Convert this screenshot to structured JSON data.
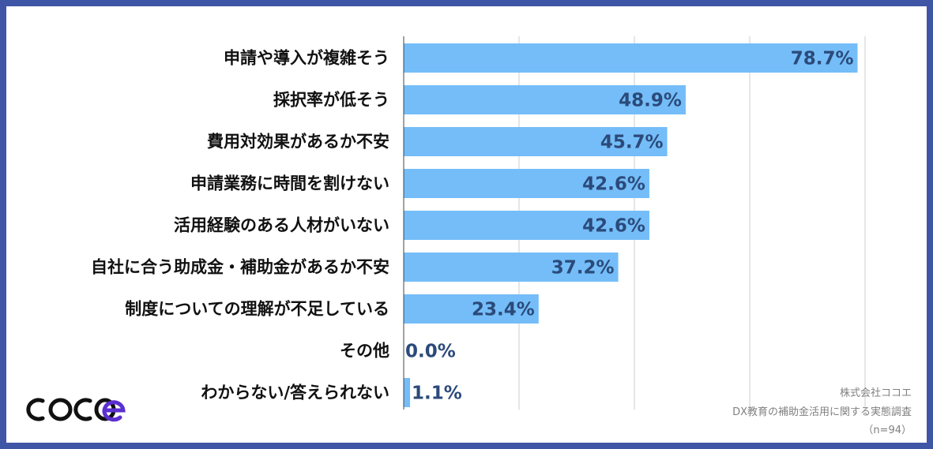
{
  "chart_data": {
    "type": "bar",
    "orientation": "horizontal",
    "categories": [
      "申請や導入が複雑そう",
      "採択率が低そう",
      "費用対効果があるか不安",
      "申請業務に時間を割けない",
      "活用経験のある人材がいない",
      "自社に合う助成金・補助金があるか不安",
      "制度についての理解が不足している",
      "その他",
      "わからない/答えられない"
    ],
    "values": [
      78.7,
      48.9,
      45.7,
      42.6,
      42.6,
      37.2,
      23.4,
      0.0,
      1.1
    ],
    "value_labels": [
      "78.7%",
      "48.9%",
      "45.7%",
      "42.6%",
      "42.6%",
      "37.2%",
      "23.4%",
      "0.0%",
      "1.1%"
    ],
    "xlim": [
      0,
      80
    ],
    "grid": true,
    "bar_color": "#74bdf8",
    "value_label_color": "#2b4a7a"
  },
  "credits": {
    "company": "株式会社ココエ",
    "survey": "DX教育の補助金活用に関する実態調査",
    "sample": "（n=94）"
  },
  "logo": {
    "text": "cocoe",
    "color": "#111111",
    "accent_color": "#5b2fd0"
  },
  "frame_color": "#3f55a5"
}
